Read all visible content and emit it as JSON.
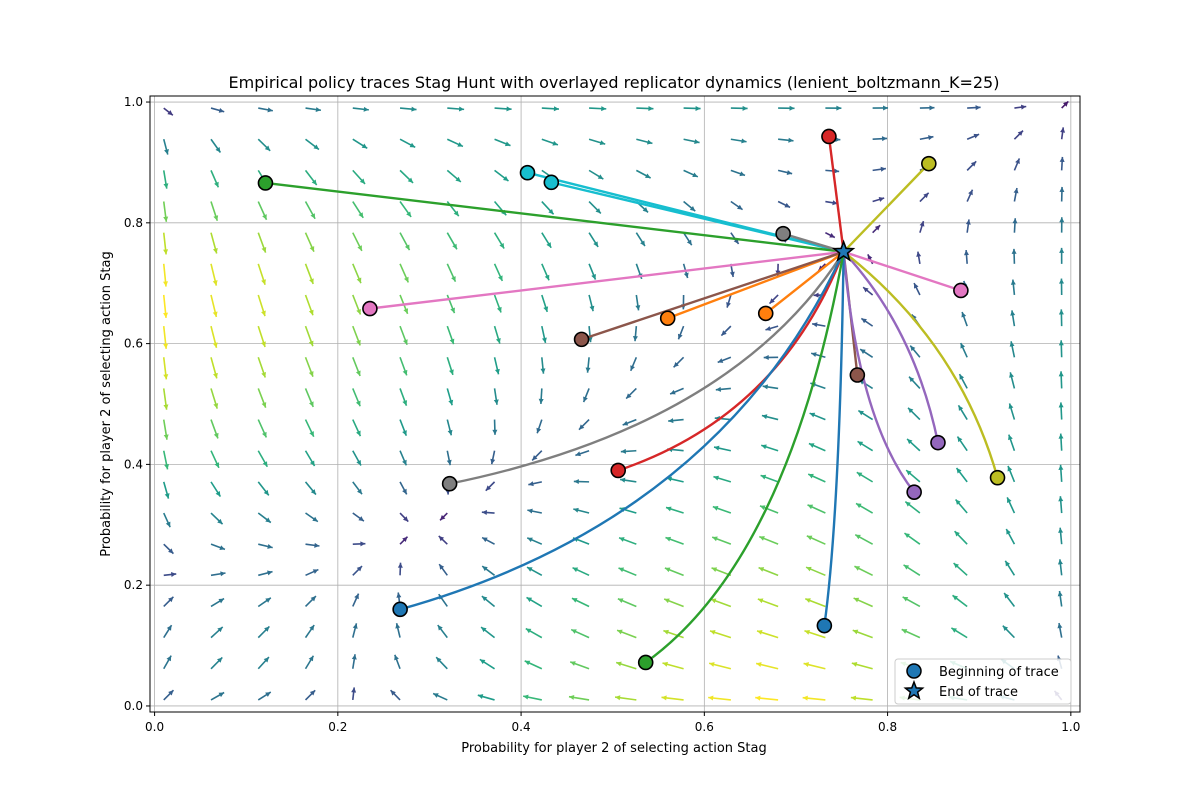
{
  "chart_data": {
    "type": "scatter",
    "title": "Empirical policy traces Stag Hunt with overlayed replicator dynamics (lenient_boltzmann_K=25)",
    "xlabel": "Probability for player 2 of selecting action Stag",
    "ylabel": "Probability for player 2 of selecting action Stag",
    "xlim": [
      -0.005,
      1.01
    ],
    "ylim": [
      -0.01,
      1.01
    ],
    "xticks": [
      "0.0",
      "0.2",
      "0.4",
      "0.6",
      "0.8",
      "1.0"
    ],
    "yticks": [
      "0.0",
      "0.2",
      "0.4",
      "0.6",
      "0.8",
      "1.0"
    ],
    "grid": true,
    "legend_position": "lower-right",
    "legend": [
      {
        "label": "Beginning of trace",
        "marker": "circle",
        "color": "#1f77b4"
      },
      {
        "label": "End of trace",
        "marker": "star",
        "color": "#1f77b4"
      }
    ],
    "end_point": [
      0.752,
      0.752
    ],
    "traces": [
      {
        "color": "#d62728",
        "start": [
          0.736,
          0.943
        ]
      },
      {
        "color": "#bcbd22",
        "start": [
          0.845,
          0.898
        ]
      },
      {
        "color": "#17becf",
        "start": [
          0.407,
          0.883
        ]
      },
      {
        "color": "#17becf",
        "start": [
          0.433,
          0.867
        ]
      },
      {
        "color": "#2ca02c",
        "start": [
          0.121,
          0.866
        ]
      },
      {
        "color": "#7f7f7f",
        "start": [
          0.686,
          0.782
        ]
      },
      {
        "color": "#e377c2",
        "start": [
          0.88,
          0.688
        ]
      },
      {
        "color": "#e377c2",
        "start": [
          0.235,
          0.658
        ]
      },
      {
        "color": "#ff7f0e",
        "start": [
          0.667,
          0.65
        ]
      },
      {
        "color": "#ff7f0e",
        "start": [
          0.56,
          0.642
        ]
      },
      {
        "color": "#8c564b",
        "start": [
          0.466,
          0.607
        ]
      },
      {
        "color": "#8c564b",
        "start": [
          0.767,
          0.548
        ]
      },
      {
        "color": "#9467bd",
        "start": [
          0.855,
          0.436
        ]
      },
      {
        "color": "#d62728",
        "start": [
          0.506,
          0.39
        ]
      },
      {
        "color": "#bcbd22",
        "start": [
          0.92,
          0.378
        ]
      },
      {
        "color": "#7f7f7f",
        "start": [
          0.322,
          0.368
        ]
      },
      {
        "color": "#9467bd",
        "start": [
          0.829,
          0.354
        ]
      },
      {
        "color": "#1f77b4",
        "start": [
          0.268,
          0.16
        ]
      },
      {
        "color": "#1f77b4",
        "start": [
          0.731,
          0.133
        ]
      },
      {
        "color": "#2ca02c",
        "start": [
          0.536,
          0.072
        ]
      }
    ],
    "vector_field": {
      "colormap": "viridis",
      "stable_points": [
        [
          0.0,
          0.0
        ],
        [
          0.752,
          0.752
        ]
      ]
    }
  }
}
